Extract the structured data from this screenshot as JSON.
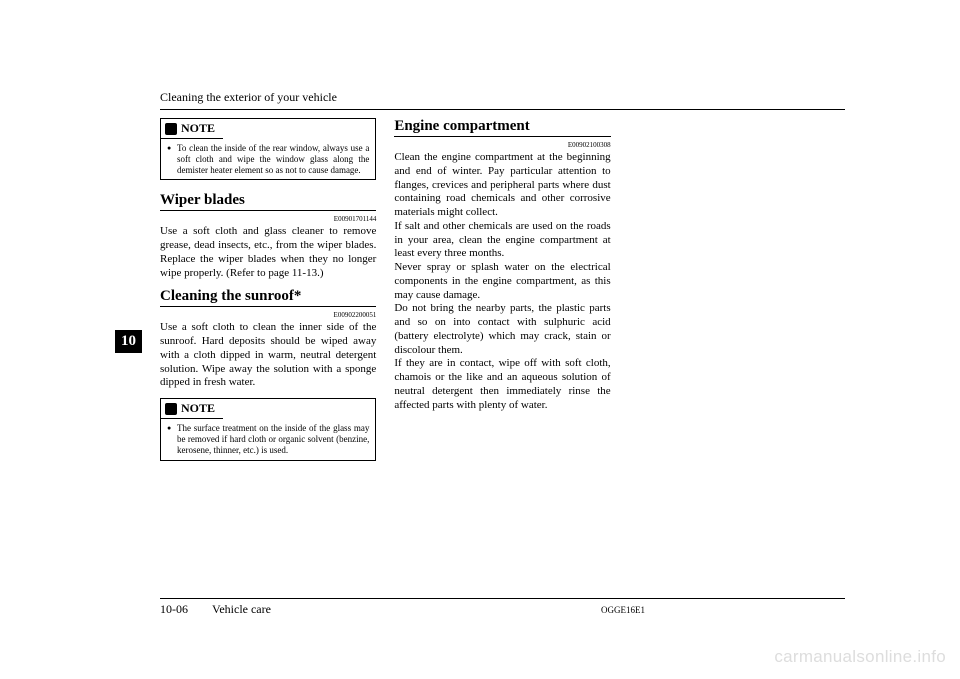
{
  "header": {
    "title": "Cleaning the exterior of your vehicle"
  },
  "col1": {
    "note1": {
      "label": "NOTE",
      "item": "To clean the inside of the rear window, always use a soft cloth and wipe the window glass along the demister heater element so as not to cause damage."
    },
    "section1": {
      "heading": "Wiper blades",
      "code": "E00901701144",
      "body": "Use a soft cloth and glass cleaner to remove grease, dead insects, etc., from the wiper blades. Replace the wiper blades when they no longer wipe properly. (Refer to page 11-13.)"
    },
    "section2": {
      "heading": "Cleaning the sunroof*",
      "code": "E00902200051",
      "body": "Use a soft cloth to clean the inner side of the sunroof. Hard deposits should be wiped away with a cloth dipped in warm, neutral detergent solution. Wipe away the solution with a sponge dipped in fresh water."
    },
    "note2": {
      "label": "NOTE",
      "item": "The surface treatment on the inside of the glass may be removed if hard cloth or organic solvent (benzine, kerosene, thinner, etc.) is used."
    }
  },
  "col2": {
    "section": {
      "heading": "Engine compartment",
      "code": "E00902100308",
      "p1": "Clean the engine compartment at the beginning and end of winter. Pay particular attention to flanges, crevices and peripheral parts where dust containing road chemicals and other corrosive materials might collect.",
      "p2": "If salt and other chemicals are used on the roads in your area, clean the engine compartment at least every three months.",
      "p3": "Never spray or splash water on the electrical components in the engine compartment, as this may cause damage.",
      "p4": "Do not bring the nearby parts, the plastic parts and so on into contact with sulphuric acid (battery electrolyte) which may crack, stain or discolour them.",
      "p5": "If they are in contact, wipe off with soft cloth, chamois or the like and an aqueous solution of neutral detergent then immediately rinse the affected parts with plenty of water."
    }
  },
  "chapter_tab": "10",
  "footer": {
    "page": "10-06",
    "section": "Vehicle care",
    "code": "OGGE16E1"
  },
  "watermark": "carmanualsonline.info"
}
